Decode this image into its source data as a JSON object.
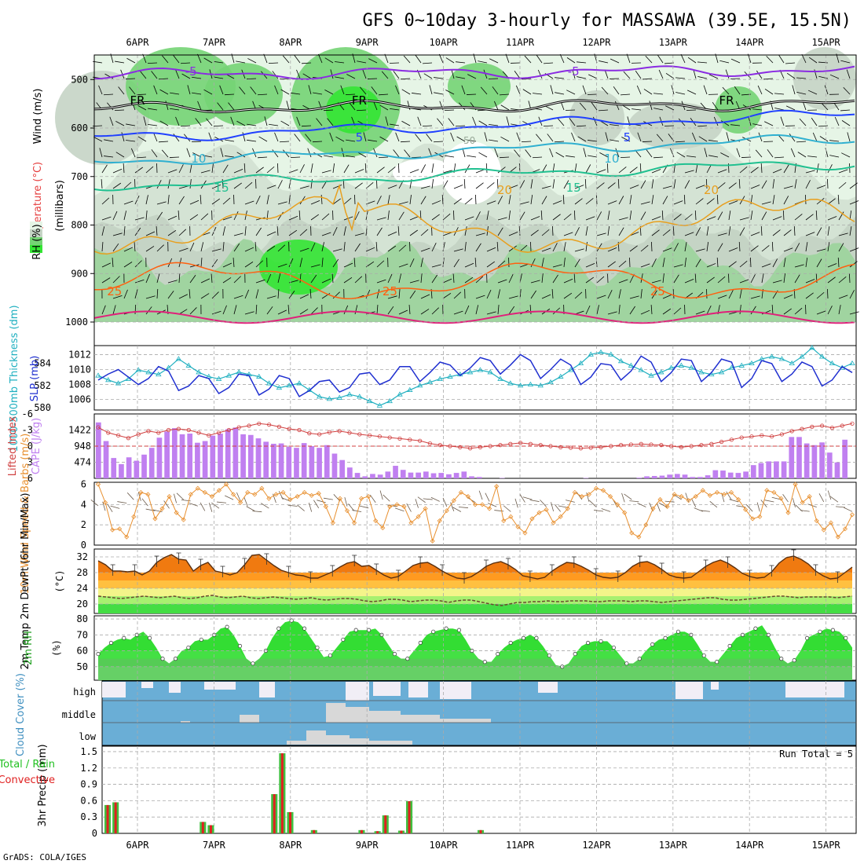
{
  "title": "GFS 0~10day 3-hourly for MASSAWA (39.5E, 15.5N)",
  "credit": "GrADS: COLA/IGES",
  "colors": {
    "rh_light": "#e6f5e6",
    "rh_mid": "#c5d4c5",
    "rh_green": "#74d474",
    "rh_bright": "#33e633",
    "purple": "#8a2be2",
    "blue": "#2040ff",
    "cyan": "#30b0d0",
    "teal": "#20c090",
    "orange": "#e8a020",
    "red_orange": "#ff6010",
    "magenta": "#e0207a",
    "slp": "#1f2fd0",
    "thickness": "#20b0c0",
    "cape": "#c080f0",
    "li": "#d04040",
    "wind": "#e89030",
    "temp_fill": "#f07a10",
    "cloud": "#6aaed6",
    "cloud_gap": "#f1eef6",
    "precip_total": "#40c040",
    "precip_conv": "#e02020",
    "grid": "#aaaaaa"
  },
  "chart_data": [
    {
      "panel": "upper_air",
      "type": "heatmap",
      "label_wind": "Wind (m/s)",
      "label_temp": "Temperature (°C)",
      "label_rh": "RH (%)",
      "ylabel": "(millibars)",
      "x_ticks": [
        "6APR",
        "7APR",
        "8APR",
        "9APR",
        "10APR",
        "11APR",
        "12APR",
        "13APR",
        "14APR",
        "15APR"
      ],
      "y_ticks": [
        500,
        600,
        700,
        800,
        900,
        1000
      ],
      "ylim": [
        1000,
        450
      ],
      "isotherm_labels": [
        {
          "value": -5,
          "text": "-5",
          "at": [
            "6.7APR",
            "11.7APR"
          ]
        },
        {
          "value": 0,
          "text": "FR",
          "at": [
            "6.0APR",
            "8.9APR",
            "13.7APR"
          ]
        },
        {
          "value": 5,
          "text": "5",
          "at": [
            "8.9APR",
            "12.4APR"
          ]
        },
        {
          "value": 10,
          "text": "10",
          "at": [
            "6.8APR",
            "12.2APR"
          ]
        },
        {
          "value": 15,
          "text": "15",
          "at": [
            "7.1APR",
            "11.7APR"
          ]
        },
        {
          "value": 20,
          "text": "20",
          "at": [
            "10.8APR",
            "13.5APR"
          ]
        },
        {
          "value": 25,
          "text": "25",
          "at": [
            "5.7APR",
            "9.3APR",
            "12.8APR"
          ]
        }
      ],
      "rh_contour_label": "50"
    },
    {
      "panel": "slp_thickness",
      "type": "line",
      "ylabel_left": "1000-500mb Thickness (dm)",
      "ylabel_right": "SLP (mb)",
      "left_ticks": [
        580,
        582,
        584
      ],
      "right_ticks": [
        1006,
        1008,
        1010,
        1012
      ],
      "slp": [
        1008.6,
        1009.4,
        1010.0,
        1009.0,
        1008.0,
        1008.8,
        1010.4,
        1009.8,
        1007.2,
        1007.8,
        1009.2,
        1008.8,
        1006.8,
        1007.6,
        1009.4,
        1009.2,
        1006.6,
        1007.4,
        1009.2,
        1008.8,
        1006.4,
        1007.2,
        1008.4,
        1008.6,
        1007.0,
        1007.6,
        1009.4,
        1009.6,
        1008.0,
        1008.6,
        1010.4,
        1010.4,
        1008.4,
        1009.6,
        1011.0,
        1010.6,
        1009.2,
        1010.2,
        1011.6,
        1011.2,
        1009.4,
        1010.6,
        1012.0,
        1011.2,
        1008.8,
        1010.0,
        1011.4,
        1010.6,
        1008.0,
        1009.0,
        1010.8,
        1010.6,
        1008.6,
        1009.8,
        1011.8,
        1011.0,
        1008.4,
        1009.6,
        1011.4,
        1011.2,
        1008.4,
        1009.6,
        1011.4,
        1011.0,
        1007.6,
        1008.8,
        1011.2,
        1010.8,
        1008.4,
        1009.4,
        1011.0,
        1010.4,
        1007.8,
        1008.6,
        1010.4,
        1009.6
      ],
      "thickness": [
        582.9,
        582.5,
        582.2,
        582.6,
        583.4,
        583.2,
        583.0,
        583.6,
        584.4,
        583.8,
        583.2,
        582.8,
        582.6,
        582.9,
        583.2,
        583.0,
        582.8,
        582.2,
        581.8,
        582.0,
        582.2,
        581.6,
        581.0,
        580.8,
        580.9,
        581.2,
        581.0,
        580.6,
        580.2,
        580.6,
        581.2,
        581.6,
        582.0,
        582.3,
        582.6,
        582.8,
        583.0,
        583.2,
        583.4,
        583.2,
        582.6,
        582.2,
        582.0,
        582.1,
        582.0,
        582.3,
        582.8,
        583.4,
        584.0,
        584.8,
        585.0,
        584.8,
        584.2,
        583.8,
        583.4,
        582.9,
        583.2,
        583.6,
        583.8,
        583.6,
        583.2,
        583.0,
        583.2,
        583.6,
        583.8,
        584.0,
        584.4,
        584.6,
        584.4,
        584.0,
        584.6,
        585.4,
        584.6,
        584.0,
        583.6,
        584.0
      ]
    },
    {
      "panel": "cape_li",
      "type": "bar",
      "ylabel_left": "Lifted Index",
      "ylabel_right": "CAPE (J/kg)",
      "left_ticks": [
        6,
        3,
        0,
        -3,
        -6
      ],
      "right_ticks": [
        474,
        948,
        1422
      ],
      "cape": [
        1650,
        1100,
        600,
        420,
        620,
        520,
        700,
        900,
        1200,
        1380,
        1480,
        1300,
        1320,
        1050,
        1100,
        1260,
        1320,
        1450,
        1500,
        1300,
        1280,
        1180,
        1080,
        1020,
        1030,
        930,
        900,
        1040,
        950,
        900,
        980,
        730,
        540,
        320,
        160,
        60,
        130,
        110,
        200,
        370,
        250,
        170,
        170,
        200,
        150,
        160,
        120,
        160,
        200,
        60,
        40,
        0,
        0,
        10,
        0,
        0,
        0,
        0,
        0,
        0,
        0,
        0,
        0,
        0,
        10,
        0,
        0,
        0,
        0,
        0,
        0,
        20,
        60,
        70,
        80,
        110,
        130,
        110,
        40,
        40,
        90,
        240,
        230,
        170,
        160,
        200,
        390,
        450,
        500,
        500,
        500,
        1220,
        1220,
        1030,
        980,
        1060,
        760,
        470,
        1140
      ],
      "lifted_index": [
        -3.5,
        -2.5,
        -2.0,
        -1.5,
        -2.2,
        -2.8,
        -2.5,
        -3.0,
        -3.2,
        -3.0,
        -2.5,
        -2.0,
        -2.5,
        -3.0,
        -3.5,
        -3.8,
        -4.2,
        -4.0,
        -3.6,
        -3.2,
        -3.0,
        -2.4,
        -2.2,
        -2.6,
        -2.8,
        -2.5,
        -2.2,
        -2.0,
        -1.8,
        -1.6,
        -1.4,
        -1.2,
        -1.0,
        -0.5,
        -0.2,
        0.0,
        0.2,
        0.4,
        0.2,
        0.0,
        -0.2,
        -0.4,
        -0.6,
        -0.4,
        -0.2,
        0.0,
        0.2,
        0.3,
        0.4,
        0.3,
        0.2,
        0.0,
        -0.2,
        -0.3,
        -0.4,
        -0.3,
        -0.2,
        0.0,
        0.2,
        0.0,
        -0.2,
        -0.4,
        -0.8,
        -1.2,
        -1.6,
        -1.8,
        -2.0,
        -1.8,
        -2.2,
        -2.8,
        -3.2,
        -3.6,
        -3.8,
        -3.4,
        -3.8,
        -4.2
      ]
    },
    {
      "panel": "wind10m",
      "type": "line",
      "ylabel": "10m Wind Speed & Barbs (m/s)",
      "y_ticks": [
        0,
        2,
        4,
        6
      ],
      "ylim": [
        0,
        6
      ],
      "speed": [
        6.0,
        4.2,
        1.5,
        1.6,
        0.8,
        2.8,
        5.2,
        5.0,
        2.6,
        3.6,
        4.8,
        3.2,
        2.5,
        5.0,
        5.6,
        5.2,
        4.8,
        5.4,
        6.0,
        5.0,
        4.2,
        5.2,
        5.0,
        5.6,
        4.6,
        5.0,
        5.2,
        4.5,
        4.8,
        5.2,
        4.9,
        5.1,
        3.8,
        2.2,
        4.6,
        3.4,
        2.2,
        4.6,
        4.8,
        2.4,
        1.7,
        3.8,
        4.0,
        3.8,
        2.2,
        2.8,
        3.6,
        0.4,
        2.4,
        3.4,
        4.4,
        5.2,
        4.8,
        4.0,
        4.0,
        3.6,
        5.8,
        2.4,
        2.8,
        1.8,
        1.2,
        2.6,
        3.2,
        3.5,
        2.2,
        2.8,
        3.6,
        5.2,
        4.8,
        5.0,
        5.6,
        5.4,
        4.8,
        4.0,
        3.2,
        1.2,
        0.8,
        2.0,
        3.6,
        4.5,
        3.8,
        5.0,
        4.8,
        4.4,
        4.8,
        5.4,
        4.9,
        5.2,
        5.0,
        5.2,
        4.5,
        3.5,
        2.6,
        2.8,
        5.4,
        5.2,
        4.6,
        3.2,
        6.0,
        4.2,
        4.8,
        2.4,
        1.5,
        2.2,
        0.8,
        1.6,
        3.0
      ]
    },
    {
      "panel": "temp2m",
      "type": "area",
      "ylabel": "2m Temp 2m DewPt (6hr Min/Max)",
      "yunit": "(°C)",
      "y_ticks": [
        20,
        24,
        28,
        32
      ],
      "ylim": [
        18,
        34
      ],
      "temp": [
        31.0,
        30.0,
        28.4,
        28.4,
        28.2,
        28.4,
        27.4,
        28.4,
        30.6,
        31.8,
        32.6,
        31.4,
        31.2,
        28.4,
        29.8,
        30.6,
        28.4,
        28.0,
        27.4,
        28.0,
        30.0,
        32.4,
        32.6,
        31.2,
        29.8,
        28.6,
        28.0,
        27.4,
        27.2,
        26.6,
        26.6,
        27.4,
        28.2,
        29.4,
        30.4,
        30.8,
        29.6,
        29.8,
        28.6,
        27.4,
        26.6,
        27.0,
        28.4,
        29.8,
        30.4,
        30.6,
        29.6,
        28.4,
        27.4,
        26.6,
        26.4,
        27.0,
        28.2,
        29.6,
        30.4,
        30.8,
        30.0,
        28.8,
        27.2,
        26.8,
        26.4,
        26.8,
        28.4,
        29.6,
        30.6,
        30.4,
        29.6,
        28.6,
        27.4,
        26.8,
        26.6,
        26.8,
        28.0,
        29.6,
        30.6,
        30.8,
        30.0,
        28.8,
        27.4,
        26.8,
        26.6,
        26.8,
        28.2,
        29.6,
        30.6,
        31.2,
        30.4,
        29.2,
        27.8,
        27.0,
        26.6,
        26.8,
        28.2,
        30.4,
        31.8,
        32.2,
        31.4,
        30.2,
        28.4,
        27.2,
        26.4,
        26.6,
        28.0,
        29.4
      ],
      "dewpt": [
        22.0,
        21.8,
        21.6,
        21.4,
        21.6,
        21.8,
        22.0,
        21.8,
        21.6,
        21.8,
        22.0,
        21.6,
        21.4,
        21.6,
        22.0,
        22.2,
        21.8,
        21.6,
        21.8,
        22.0,
        21.6,
        21.4,
        21.6,
        21.8,
        21.6,
        21.4,
        21.2,
        21.4,
        21.6,
        21.2,
        21.0,
        21.2,
        21.4,
        21.4,
        21.2,
        20.8,
        20.6,
        20.8,
        21.2,
        21.2,
        21.0,
        20.6,
        20.8,
        21.0,
        21.0,
        20.8,
        20.4,
        20.8,
        21.0,
        21.0,
        20.6,
        20.2,
        19.8,
        19.6,
        20.0,
        20.4,
        20.4,
        20.6,
        20.6,
        20.8,
        20.6,
        20.6,
        20.8,
        20.8,
        20.8,
        20.6,
        20.6,
        20.8,
        20.8,
        20.8,
        20.6,
        20.8,
        20.8,
        20.6,
        20.4,
        20.6,
        20.8,
        21.0,
        21.2,
        21.4,
        21.6,
        21.6,
        21.2,
        21.0,
        21.0,
        21.2,
        21.4,
        21.6,
        21.8,
        22.0,
        22.0,
        21.8,
        21.6,
        21.8,
        21.8,
        21.8,
        21.8,
        21.6,
        21.8,
        22.0
      ]
    },
    {
      "panel": "rh2m",
      "type": "area",
      "ylabel": "2m RH",
      "yunit": "(%)",
      "y_ticks": [
        50,
        60,
        70,
        80
      ],
      "ylim": [
        42,
        82
      ],
      "rh": [
        58,
        62,
        65,
        67,
        68,
        67,
        70,
        72,
        68,
        62,
        55,
        52,
        55,
        60,
        62,
        66,
        67,
        67,
        70,
        74,
        75,
        70,
        63,
        55,
        52,
        55,
        60,
        68,
        74,
        78,
        79,
        78,
        74,
        68,
        62,
        56,
        57,
        62,
        67,
        72,
        73,
        73,
        73,
        74,
        70,
        64,
        58,
        55,
        55,
        60,
        65,
        70,
        72,
        73,
        74,
        74,
        73,
        67,
        60,
        55,
        53,
        53,
        58,
        62,
        65,
        67,
        68,
        70,
        68,
        63,
        57,
        51,
        50,
        52,
        58,
        63,
        65,
        66,
        66,
        66,
        62,
        57,
        52,
        52,
        55,
        60,
        64,
        67,
        68,
        70,
        72,
        72,
        70,
        64,
        57,
        53,
        53,
        58,
        63,
        68,
        70,
        72,
        74,
        76,
        70,
        62,
        55,
        52,
        54,
        60,
        68,
        70,
        72,
        74,
        73,
        72,
        68,
        62
      ]
    },
    {
      "panel": "cloud",
      "type": "area",
      "ylabel": "Cloud Cover (%)",
      "levels": [
        "high",
        "middle",
        "low"
      ]
    },
    {
      "panel": "precip",
      "type": "bar",
      "ylabel_a": "3hr Precip (mm)",
      "ylabel_b": "Total / Rain",
      "ylabel_c": "Convective",
      "y_ticks": [
        0,
        0.3,
        0.6,
        0.9,
        1.2,
        1.5
      ],
      "ylim": [
        0,
        1.6
      ],
      "run_total": "Run Total = 5",
      "total": [
        0.52,
        0.57,
        0,
        0,
        0,
        0,
        0,
        0,
        0,
        0,
        0,
        0,
        0.21,
        0.15,
        0,
        0,
        0,
        0,
        0,
        0,
        0,
        0.72,
        1.47,
        0.39,
        0,
        0,
        0.06,
        0,
        0,
        0,
        0,
        0,
        0.06,
        0,
        0.04,
        0.33,
        0,
        0.05,
        0.59,
        0,
        0,
        0,
        0,
        0,
        0,
        0,
        0,
        0.06,
        0,
        0,
        0,
        0,
        0,
        0,
        0,
        0,
        0,
        0,
        0,
        0,
        0,
        0,
        0,
        0,
        0,
        0,
        0,
        0,
        0,
        0,
        0,
        0,
        0,
        0,
        0,
        0,
        0,
        0,
        0,
        0,
        0,
        0,
        0,
        0,
        0,
        0,
        0,
        0,
        0,
        0,
        0,
        0,
        0,
        0,
        0
      ]
    }
  ]
}
